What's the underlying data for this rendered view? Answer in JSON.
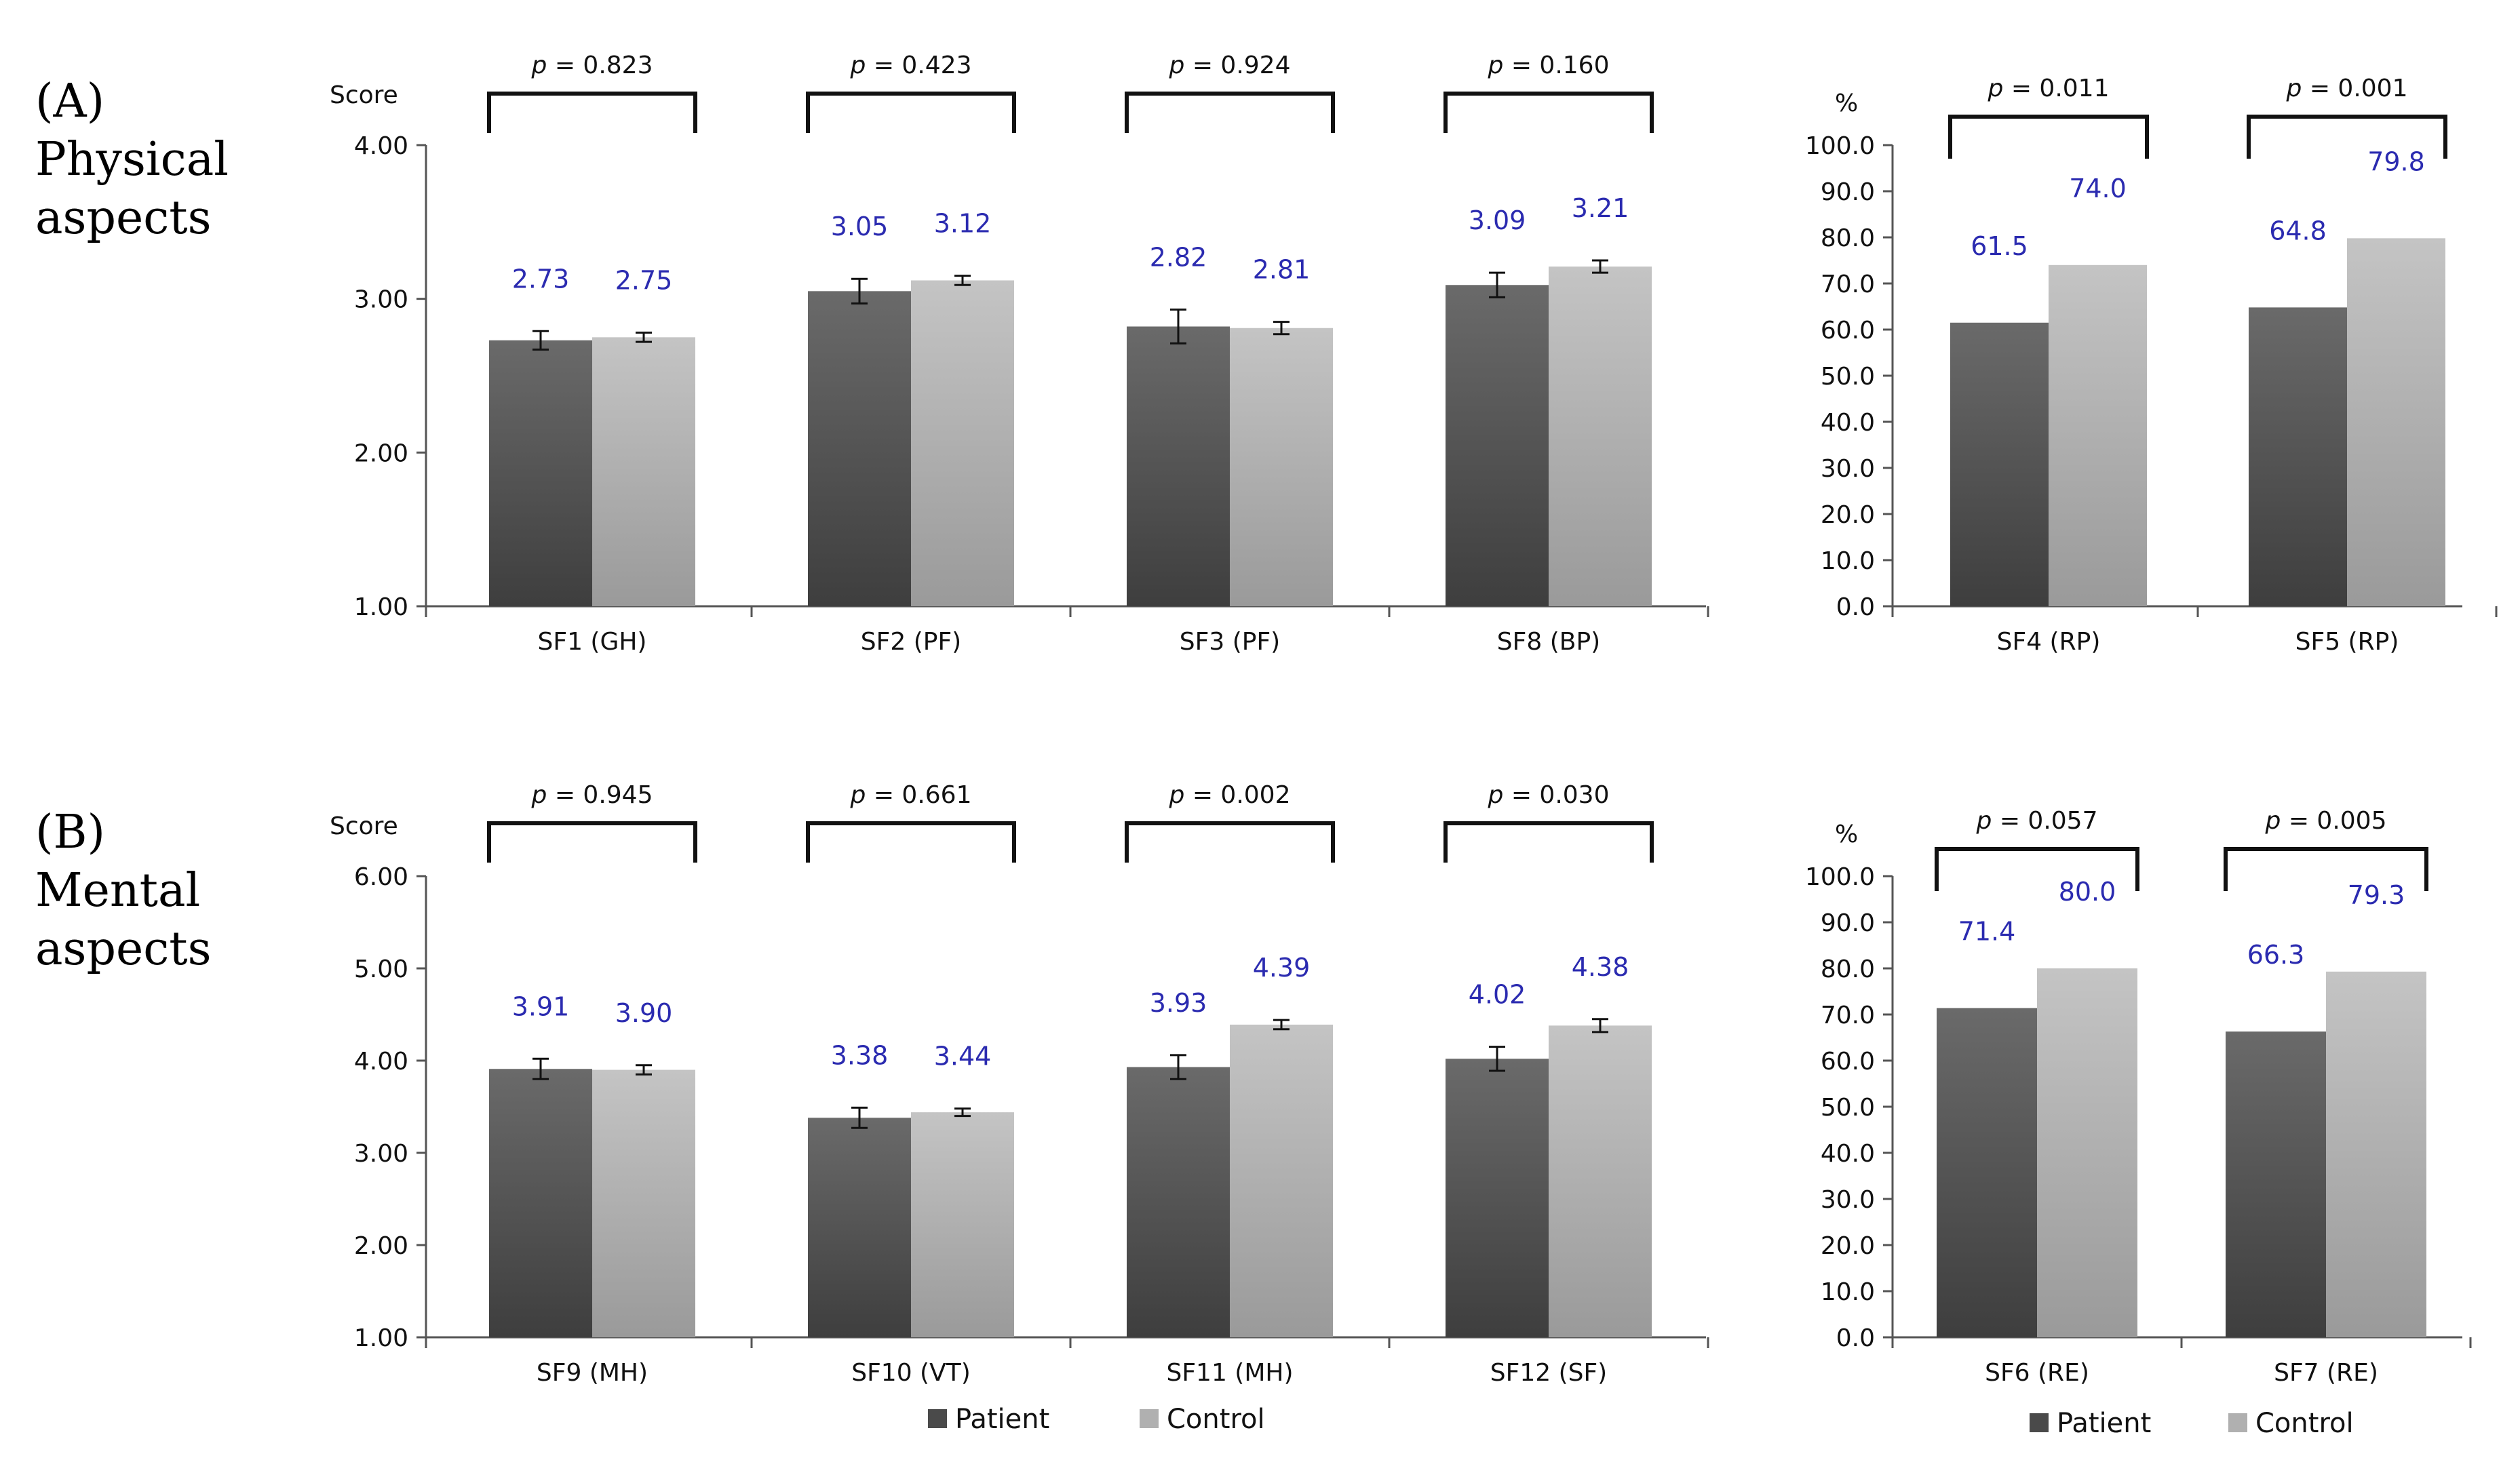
{
  "colors": {
    "patient_top": "#6a6a6a",
    "patient_bottom": "#3e3e3e",
    "control_top": "#c4c4c4",
    "control_bottom": "#9a9a9a",
    "label_blue": "#2b2bb0",
    "axis": "#555555"
  },
  "panels": {
    "A": {
      "letter": "(A)",
      "line1": "Physical",
      "line2": "aspects"
    },
    "B": {
      "letter": "(B)",
      "line1": "Mental",
      "line2": "aspects"
    }
  },
  "legend": {
    "patient": "Patient",
    "control": "Control"
  },
  "chart_data": [
    {
      "id": "A-score",
      "type": "bar",
      "ylabel": "Score",
      "ylim": [
        1,
        4
      ],
      "yticks": [
        "1.00",
        "2.00",
        "3.00",
        "4.00"
      ],
      "categories": [
        "SF1 (GH)",
        "SF2 (PF)",
        "SF3 (PF)",
        "SF8 (BP)"
      ],
      "series": [
        {
          "name": "Patient",
          "values": [
            2.73,
            3.05,
            2.82,
            3.09
          ],
          "labels": [
            "2.73",
            "3.05",
            "2.82",
            "3.09"
          ],
          "err": [
            0.06,
            0.08,
            0.11,
            0.08
          ]
        },
        {
          "name": "Control",
          "values": [
            2.75,
            3.12,
            2.81,
            3.21
          ],
          "labels": [
            "2.75",
            "3.12",
            "2.81",
            "3.21"
          ],
          "err": [
            0.03,
            0.03,
            0.04,
            0.04
          ]
        }
      ],
      "pvalues": [
        "= 0.823",
        "= 0.423",
        "= 0.924",
        "= 0.160"
      ]
    },
    {
      "id": "A-pct",
      "type": "bar",
      "ylabel": "%",
      "ylim": [
        0,
        100
      ],
      "yticks": [
        "0.0",
        "10.0",
        "20.0",
        "30.0",
        "40.0",
        "50.0",
        "60.0",
        "70.0",
        "80.0",
        "90.0",
        "100.0"
      ],
      "categories": [
        "SF4 (RP)",
        "SF5 (RP)"
      ],
      "series": [
        {
          "name": "Patient",
          "values": [
            61.5,
            64.8
          ],
          "labels": [
            "61.5",
            "64.8"
          ]
        },
        {
          "name": "Control",
          "values": [
            74.0,
            79.8
          ],
          "labels": [
            "74.0",
            "79.8"
          ]
        }
      ],
      "pvalues": [
        "= 0.011",
        "= 0.001"
      ]
    },
    {
      "id": "B-score",
      "type": "bar",
      "ylabel": "Score",
      "ylim": [
        1,
        6
      ],
      "yticks": [
        "1.00",
        "2.00",
        "3.00",
        "4.00",
        "5.00",
        "6.00"
      ],
      "categories": [
        "SF9 (MH)",
        "SF10 (VT)",
        "SF11 (MH)",
        "SF12 (SF)"
      ],
      "series": [
        {
          "name": "Patient",
          "values": [
            3.91,
            3.38,
            3.93,
            4.02
          ],
          "labels": [
            "3.91",
            "3.38",
            "3.93",
            "4.02"
          ],
          "err": [
            0.11,
            0.11,
            0.13,
            0.13
          ]
        },
        {
          "name": "Control",
          "values": [
            3.9,
            3.44,
            4.39,
            4.38
          ],
          "labels": [
            "3.90",
            "3.44",
            "4.39",
            "4.38"
          ],
          "err": [
            0.05,
            0.04,
            0.05,
            0.07
          ]
        }
      ],
      "pvalues": [
        "= 0.945",
        "= 0.661",
        "= 0.002",
        "= 0.030"
      ]
    },
    {
      "id": "B-pct",
      "type": "bar",
      "ylabel": "%",
      "ylim": [
        0,
        100
      ],
      "yticks": [
        "0.0",
        "10.0",
        "20.0",
        "30.0",
        "40.0",
        "50.0",
        "60.0",
        "70.0",
        "80.0",
        "90.0",
        "100.0"
      ],
      "categories": [
        "SF6 (RE)",
        "SF7 (RE)"
      ],
      "series": [
        {
          "name": "Patient",
          "values": [
            71.4,
            66.3
          ],
          "labels": [
            "71.4",
            "66.3"
          ]
        },
        {
          "name": "Control",
          "values": [
            80.0,
            79.3
          ],
          "labels": [
            "80.0",
            "79.3"
          ]
        }
      ],
      "pvalues": [
        "= 0.057",
        "= 0.005"
      ]
    }
  ]
}
